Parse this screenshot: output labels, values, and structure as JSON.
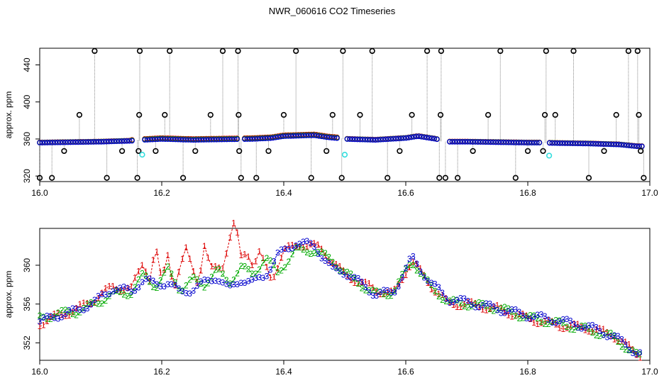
{
  "title": "NWR_060616  CO2 Timeseries",
  "chart_data": [
    {
      "type": "scatter",
      "name": "top-panel",
      "ylabel": "approx. ppm",
      "xlabel": "",
      "xlim": [
        16.0,
        17.0
      ],
      "ylim": [
        314,
        458
      ],
      "xticks": [
        "16.0",
        "16.2",
        "16.4",
        "16.6",
        "16.8",
        "17.0"
      ],
      "yticks": [
        "320",
        "360",
        "400",
        "440"
      ],
      "series_colors": {
        "flagged": "#000000",
        "s1": "#dd0000",
        "s2": "#00aa00",
        "s3": "#0000cc",
        "cal": "#33dddd",
        "line": "#888888"
      },
      "baseline": [
        [
          16.0,
          356
        ],
        [
          16.05,
          356.5
        ],
        [
          16.1,
          357
        ],
        [
          16.15,
          358
        ],
        [
          16.17,
          359
        ],
        [
          16.2,
          360
        ],
        [
          16.25,
          359
        ],
        [
          16.3,
          359.5
        ],
        [
          16.35,
          360
        ],
        [
          16.38,
          361
        ],
        [
          16.4,
          363
        ],
        [
          16.45,
          364
        ],
        [
          16.47,
          362
        ],
        [
          16.5,
          360
        ],
        [
          16.55,
          359
        ],
        [
          16.6,
          361
        ],
        [
          16.62,
          363
        ],
        [
          16.65,
          360
        ],
        [
          16.66,
          357
        ],
        [
          16.7,
          357
        ],
        [
          16.75,
          356.5
        ],
        [
          16.8,
          356
        ],
        [
          16.82,
          356
        ],
        [
          16.85,
          355.5
        ],
        [
          16.9,
          355
        ],
        [
          16.95,
          354
        ],
        [
          16.98,
          352
        ]
      ],
      "flagged_points": [
        [
          16.0,
          318
        ],
        [
          16.02,
          318
        ],
        [
          16.04,
          347
        ],
        [
          16.065,
          386
        ],
        [
          16.09,
          455
        ],
        [
          16.11,
          318
        ],
        [
          16.135,
          347
        ],
        [
          16.16,
          318
        ],
        [
          16.162,
          347
        ],
        [
          16.163,
          386
        ],
        [
          16.164,
          455
        ],
        [
          16.19,
          347
        ],
        [
          16.205,
          386
        ],
        [
          16.213,
          455
        ],
        [
          16.235,
          318
        ],
        [
          16.255,
          347
        ],
        [
          16.28,
          386
        ],
        [
          16.3,
          455
        ],
        [
          16.325,
          455
        ],
        [
          16.326,
          386
        ],
        [
          16.327,
          347
        ],
        [
          16.33,
          318
        ],
        [
          16.355,
          318
        ],
        [
          16.375,
          347
        ],
        [
          16.4,
          386
        ],
        [
          16.42,
          455
        ],
        [
          16.445,
          318
        ],
        [
          16.47,
          347
        ],
        [
          16.48,
          386
        ],
        [
          16.495,
          318
        ],
        [
          16.497,
          455
        ],
        [
          16.525,
          386
        ],
        [
          16.545,
          455
        ],
        [
          16.57,
          318
        ],
        [
          16.59,
          347
        ],
        [
          16.61,
          386
        ],
        [
          16.635,
          455
        ],
        [
          16.655,
          318
        ],
        [
          16.657,
          386
        ],
        [
          16.658,
          455
        ],
        [
          16.665,
          318
        ],
        [
          16.685,
          318
        ],
        [
          16.71,
          347
        ],
        [
          16.735,
          386
        ],
        [
          16.755,
          455
        ],
        [
          16.78,
          318
        ],
        [
          16.8,
          347
        ],
        [
          16.825,
          347
        ],
        [
          16.828,
          386
        ],
        [
          16.83,
          455
        ],
        [
          16.845,
          386
        ],
        [
          16.875,
          455
        ],
        [
          16.9,
          318
        ],
        [
          16.925,
          347
        ],
        [
          16.945,
          386
        ],
        [
          16.965,
          455
        ],
        [
          16.98,
          455
        ],
        [
          16.982,
          386
        ],
        [
          16.985,
          347
        ],
        [
          16.99,
          318
        ]
      ],
      "cal_points": [
        [
          16.168,
          343
        ],
        [
          16.5,
          343
        ],
        [
          16.835,
          342
        ]
      ]
    },
    {
      "type": "line",
      "name": "bottom-panel",
      "ylabel": "approx. ppm",
      "xlabel": "",
      "xlim": [
        16.0,
        17.0
      ],
      "ylim": [
        350.2,
        363.8
      ],
      "xticks": [
        "16.0",
        "16.2",
        "16.4",
        "16.6",
        "16.8",
        "17.0"
      ],
      "yticks": [
        "352",
        "356",
        "360"
      ],
      "series": [
        {
          "name": "1",
          "color": "#dd0000",
          "x": [
            16.0,
            16.03,
            16.06,
            16.09,
            16.12,
            16.15,
            16.17,
            16.18,
            16.19,
            16.2,
            16.21,
            16.22,
            16.24,
            16.26,
            16.27,
            16.28,
            16.3,
            16.31,
            16.32,
            16.33,
            16.34,
            16.35,
            16.36,
            16.38,
            16.4,
            16.43,
            16.46,
            16.5,
            16.55,
            16.58,
            16.61,
            16.64,
            16.67,
            16.7,
            16.75,
            16.8,
            16.85,
            16.9,
            16.94,
            16.98
          ],
          "y": [
            354,
            354.8,
            355.4,
            356.5,
            357.8,
            357.5,
            360.5,
            358.5,
            361.8,
            358.2,
            361.2,
            357.8,
            361.5,
            358.2,
            362,
            359.5,
            360,
            362.5,
            364.5,
            360.8,
            361.5,
            360,
            361.2,
            358.5,
            361.5,
            362.2,
            361.8,
            359,
            357.5,
            357,
            360.5,
            358,
            356,
            356,
            355.5,
            354.5,
            353.8,
            353.5,
            352.8,
            350.8
          ]
        },
        {
          "name": "2",
          "color": "#00aa00",
          "x": [
            16.0,
            16.03,
            16.06,
            16.09,
            16.12,
            16.15,
            16.17,
            16.19,
            16.21,
            16.23,
            16.25,
            16.27,
            16.29,
            16.31,
            16.33,
            16.35,
            16.37,
            16.39,
            16.42,
            16.45,
            16.48,
            16.5,
            16.55,
            16.58,
            16.61,
            16.64,
            16.67,
            16.7,
            16.75,
            16.8,
            16.85,
            16.9,
            16.94,
            16.98
          ],
          "y": [
            354.5,
            355,
            355.2,
            356,
            357,
            357.2,
            359,
            357.8,
            359.5,
            357.5,
            358.5,
            358,
            359.5,
            358.2,
            359.8,
            359,
            360.8,
            359.2,
            361.5,
            361.5,
            360.5,
            359.2,
            357,
            357.2,
            360.5,
            357.8,
            356.2,
            356,
            355.6,
            354.6,
            354,
            353.3,
            352.6,
            350.6
          ]
        },
        {
          "name": "3",
          "color": "#0000cc",
          "x": [
            16.0,
            16.03,
            16.06,
            16.09,
            16.12,
            16.15,
            16.17,
            16.19,
            16.21,
            16.23,
            16.25,
            16.27,
            16.29,
            16.31,
            16.33,
            16.35,
            16.37,
            16.39,
            16.42,
            16.45,
            16.48,
            16.5,
            16.55,
            16.58,
            16.61,
            16.64,
            16.67,
            16.7,
            16.75,
            16.8,
            16.85,
            16.9,
            16.94,
            16.98
          ],
          "y": [
            354.2,
            354.8,
            355.3,
            356.2,
            357.6,
            357.3,
            358.5,
            358,
            358.2,
            357.2,
            357.5,
            358.2,
            358.8,
            357.5,
            358.5,
            358.2,
            359,
            361,
            362.3,
            362,
            359.5,
            359.3,
            357,
            357.2,
            360.8,
            358.2,
            356.5,
            356.2,
            355.5,
            354.8,
            354.3,
            353.6,
            352.7,
            350.9
          ]
        }
      ]
    }
  ]
}
